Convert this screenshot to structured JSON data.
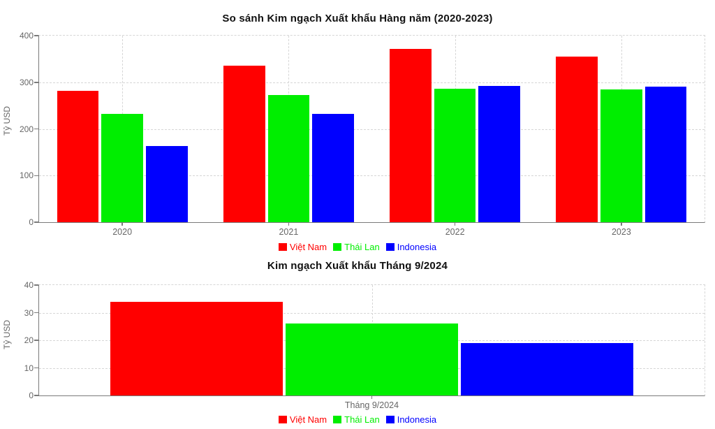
{
  "colors": {
    "viet_nam": "#ff0000",
    "thai_lan": "#00ee00",
    "indonesia": "#0000ff",
    "title_text": "#111111",
    "tick_text": "#666666",
    "axis_line": "#7a7a7a",
    "grid_line": "#d6d6d6",
    "background": "#ffffff"
  },
  "chart_data": [
    {
      "type": "bar",
      "title": "So sánh Kim ngạch Xuất khẩu Hàng năm (2020-2023)",
      "ylabel": "Tỷ USD",
      "xlabel": "",
      "categories": [
        "2020",
        "2021",
        "2022",
        "2023"
      ],
      "series": [
        {
          "name": "Việt Nam",
          "color": "#ff0000",
          "values": [
            282,
            336,
            371,
            355
          ]
        },
        {
          "name": "Thái Lan",
          "color": "#00ee00",
          "values": [
            232,
            272,
            286,
            285
          ]
        },
        {
          "name": "Indonesia",
          "color": "#0000ff",
          "values": [
            163,
            232,
            292,
            291
          ]
        }
      ],
      "ylim": [
        0,
        400
      ],
      "yticks": [
        0,
        100,
        200,
        300,
        400
      ],
      "grid": true,
      "legend_position": "bottom"
    },
    {
      "type": "bar",
      "title": "Kim ngạch Xuất khẩu Tháng 9/2024",
      "ylabel": "Tỷ USD",
      "xlabel": "",
      "categories": [
        "Tháng 9/2024"
      ],
      "series": [
        {
          "name": "Việt Nam",
          "color": "#ff0000",
          "values": [
            34
          ]
        },
        {
          "name": "Thái Lan",
          "color": "#00ee00",
          "values": [
            26
          ]
        },
        {
          "name": "Indonesia",
          "color": "#0000ff",
          "values": [
            19
          ]
        }
      ],
      "ylim": [
        0,
        40
      ],
      "yticks": [
        0,
        10,
        20,
        30,
        40
      ],
      "grid": true,
      "legend_position": "bottom"
    }
  ]
}
